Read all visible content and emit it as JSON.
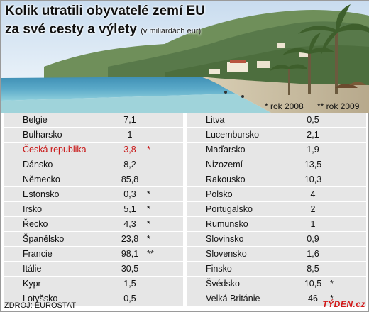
{
  "title": {
    "line1": "Kolik utratili obyvatelé zemí EU",
    "line2": "za své cesty a výlety",
    "unit": "(v miliardách eur)"
  },
  "notes": {
    "note_2008": "* rok 2008",
    "note_2009": "** rok 2009"
  },
  "table": {
    "left": [
      {
        "country": "Belgie",
        "value": "7,1",
        "mark": ""
      },
      {
        "country": "Bulharsko",
        "value": "1",
        "mark": ""
      },
      {
        "country": "Česká republika",
        "value": "3,8",
        "mark": "*",
        "highlight": true
      },
      {
        "country": "Dánsko",
        "value": "8,2",
        "mark": ""
      },
      {
        "country": "Německo",
        "value": "85,8",
        "mark": ""
      },
      {
        "country": "Estonsko",
        "value": "0,3",
        "mark": "*"
      },
      {
        "country": "Irsko",
        "value": "5,1",
        "mark": "*"
      },
      {
        "country": "Řecko",
        "value": "4,3",
        "mark": "*"
      },
      {
        "country": "Španělsko",
        "value": "23,8",
        "mark": "*"
      },
      {
        "country": "Francie",
        "value": "98,1",
        "mark": "**"
      },
      {
        "country": "Itálie",
        "value": "30,5",
        "mark": ""
      },
      {
        "country": "Kypr",
        "value": "1,5",
        "mark": ""
      },
      {
        "country": "Lotyšsko",
        "value": "0,5",
        "mark": ""
      }
    ],
    "right": [
      {
        "country": "Litva",
        "value": "0,5",
        "mark": ""
      },
      {
        "country": "Lucembursko",
        "value": "2,1",
        "mark": ""
      },
      {
        "country": "Maďarsko",
        "value": "1,9",
        "mark": ""
      },
      {
        "country": "Nizozemí",
        "value": "13,5",
        "mark": ""
      },
      {
        "country": "Rakousko",
        "value": "10,3",
        "mark": ""
      },
      {
        "country": "Polsko",
        "value": "4",
        "mark": ""
      },
      {
        "country": "Portugalsko",
        "value": "2",
        "mark": ""
      },
      {
        "country": "Rumunsko",
        "value": "1",
        "mark": ""
      },
      {
        "country": "Slovinsko",
        "value": "0,9",
        "mark": ""
      },
      {
        "country": "Slovensko",
        "value": "1,6",
        "mark": ""
      },
      {
        "country": "Finsko",
        "value": "8,5",
        "mark": ""
      },
      {
        "country": "Švédsko",
        "value": "10,5",
        "mark": "*"
      },
      {
        "country": "Velká Británie",
        "value": "46",
        "mark": "*"
      }
    ]
  },
  "footer": {
    "source": "ZDROJ: EUROSTAT",
    "logo": "TÝDEN.cz"
  },
  "colors": {
    "highlight": "#c81414",
    "row_bg": "#e6e6e6",
    "logo": "#d21a1a"
  }
}
